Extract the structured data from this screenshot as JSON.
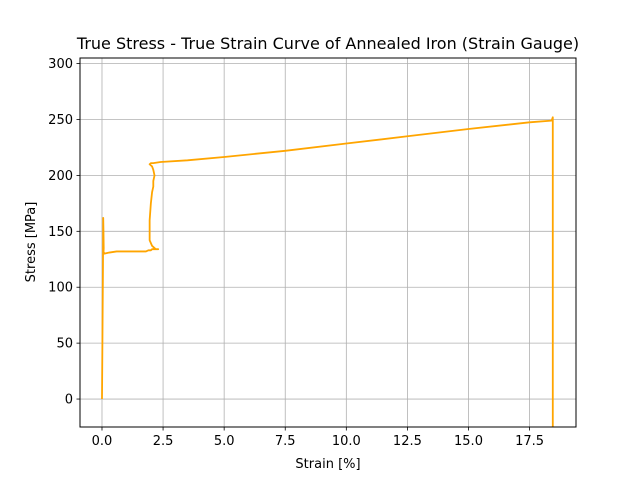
{
  "chart_data": {
    "type": "line",
    "title": "True Stress - True Strain Curve of Annealed Iron (Strain Gauge)",
    "xlabel": "Strain [%]",
    "ylabel": "Stress [MPa]",
    "xlim": [
      -0.9,
      19.4
    ],
    "ylim": [
      -25,
      305
    ],
    "xticks": [
      0.0,
      2.5,
      5.0,
      7.5,
      10.0,
      12.5,
      15.0,
      17.5
    ],
    "xtick_labels": [
      "0.0",
      "2.5",
      "5.0",
      "7.5",
      "10.0",
      "12.5",
      "15.0",
      "17.5"
    ],
    "yticks": [
      0,
      50,
      100,
      150,
      200,
      250,
      300
    ],
    "ytick_labels": [
      "0",
      "50",
      "100",
      "150",
      "200",
      "250",
      "300"
    ],
    "grid": true,
    "legend": "none",
    "series": [
      {
        "color": "#ffa500",
        "x": [
          0.0,
          0.02,
          0.04,
          0.05,
          0.06,
          0.07,
          0.06,
          0.08,
          0.1,
          0.3,
          0.6,
          1.0,
          1.5,
          1.8,
          1.9,
          2.0,
          2.05,
          2.1,
          2.2,
          2.3,
          2.2,
          2.05,
          1.95,
          1.95,
          2.0,
          2.05,
          2.1,
          2.1,
          2.15,
          2.1,
          2.05,
          1.95,
          2.0,
          2.1,
          2.4,
          3.5,
          5.0,
          7.5,
          10.0,
          12.5,
          15.0,
          17.5,
          18.4,
          18.45,
          18.45,
          18.45,
          18.45
        ],
        "y": [
          0,
          60,
          120,
          162,
          150,
          135,
          130,
          131,
          130,
          131,
          132,
          132,
          132,
          132,
          133,
          133,
          134,
          134,
          134,
          134,
          134,
          137,
          142,
          160,
          175,
          185,
          190,
          195,
          200,
          205,
          208,
          210,
          211,
          211,
          212,
          213.5,
          216.5,
          222,
          228.5,
          235,
          241.5,
          247.5,
          249,
          252,
          245,
          100,
          -25
        ]
      }
    ]
  }
}
